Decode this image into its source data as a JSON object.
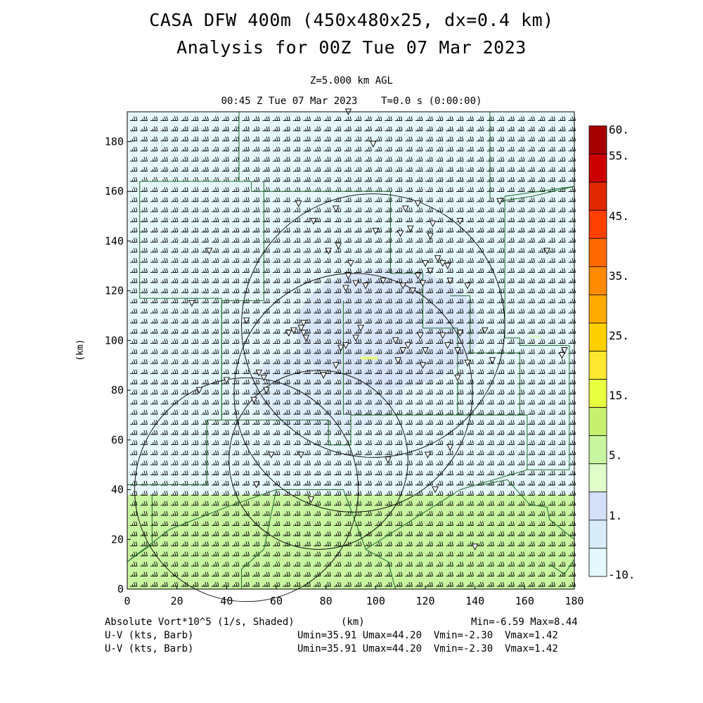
{
  "header": {
    "title_line1": "CASA DFW 400m (450x480x25, dx=0.4 km)",
    "title_line2": "Analysis for 00Z Tue 07 Mar 2023",
    "level_label": "Z=5.000 km AGL",
    "time_label": "00:45 Z Tue 07 Mar 2023    T=0.0 s (0:00:00)"
  },
  "footer": {
    "field_label": "Absolute Vort*10^5 (1/s, Shaded)",
    "x_unit": "(km)",
    "minmax": "Min=-6.59 Max=8.44",
    "wind_label_1": "U-V (kts, Barb)",
    "wind_stats_1": "Umin=35.91 Umax=44.20  Vmin=-2.30  Vmax=1.42",
    "wind_label_2": "U-V (kts, Barb)",
    "wind_stats_2": "Umin=35.91 Umax=44.20  Vmin=-2.30  Vmax=1.42"
  },
  "colors": {
    "band_low": "#e6f8fc",
    "band_mid": "#d4e0f8",
    "band_green": "#c8f5a0",
    "barb": "#000000",
    "county_lines": "#1a6b2a"
  },
  "chart_data": {
    "type": "heatmap",
    "xlabel": "",
    "ylabel": "(km)",
    "xlim": [
      0,
      180
    ],
    "ylim": [
      0,
      192
    ],
    "xticks": [
      0,
      20,
      40,
      60,
      80,
      100,
      120,
      140,
      160,
      180
    ],
    "yticks": [
      0,
      20,
      40,
      60,
      80,
      100,
      120,
      140,
      160,
      180
    ],
    "grid": false,
    "colorbar": {
      "labels": [
        "60.",
        "55.",
        "45.",
        "35.",
        "25.",
        "15.",
        "5.",
        "1.",
        "-10."
      ],
      "colors": [
        "#a80000",
        "#cc0000",
        "#e02800",
        "#ff4000",
        "#ff6a00",
        "#ff8c00",
        "#ffaa00",
        "#ffd000",
        "#ffe830",
        "#e8ff40",
        "#c8f070",
        "#c8f5a0",
        "#e0fcc8",
        "#d4e0f8",
        "#d8ecfa",
        "#e6f8fc"
      ]
    },
    "field_regions": [
      {
        "y_from": 0,
        "y_to": 38,
        "level": "5 to 10"
      },
      {
        "y_from": 38,
        "y_to": 192,
        "level": "-10 to 1"
      }
    ],
    "wind": {
      "u_range": [
        35.91,
        44.2
      ],
      "v_range": [
        -2.3,
        1.42
      ],
      "units": "kts"
    },
    "range_rings": [
      {
        "center": [
          48,
          40
        ],
        "radius": 45
      },
      {
        "center": [
          77,
          52
        ],
        "radius": 36
      },
      {
        "center": [
          91,
          79
        ],
        "radius": 48
      },
      {
        "center": [
          99,
          106
        ],
        "radius": 53
      }
    ],
    "stations": [
      [
        89,
        192
      ],
      [
        99,
        179
      ],
      [
        69,
        155
      ],
      [
        75,
        148
      ],
      [
        84,
        153
      ],
      [
        100,
        144
      ],
      [
        112,
        153
      ],
      [
        117,
        155
      ],
      [
        123,
        147
      ],
      [
        134,
        148
      ],
      [
        150,
        156
      ],
      [
        110,
        143
      ],
      [
        114,
        145
      ],
      [
        122,
        142
      ],
      [
        85,
        138
      ],
      [
        81,
        136
      ],
      [
        90,
        131
      ],
      [
        92,
        123
      ],
      [
        96,
        122
      ],
      [
        88,
        121
      ],
      [
        89,
        126
      ],
      [
        103,
        124
      ],
      [
        111,
        122
      ],
      [
        115,
        120
      ],
      [
        120,
        131
      ],
      [
        122,
        128
      ],
      [
        125,
        133
      ],
      [
        127,
        131
      ],
      [
        129,
        130
      ],
      [
        130,
        124
      ],
      [
        137,
        122
      ],
      [
        169,
        136
      ],
      [
        117,
        126
      ],
      [
        119,
        123
      ],
      [
        33,
        136
      ],
      [
        26,
        115
      ],
      [
        48,
        108
      ],
      [
        65,
        103
      ],
      [
        67,
        104
      ],
      [
        70,
        105
      ],
      [
        71,
        103
      ],
      [
        71,
        107
      ],
      [
        72,
        101
      ],
      [
        92,
        101
      ],
      [
        94,
        105
      ],
      [
        88,
        98
      ],
      [
        86,
        97
      ],
      [
        108,
        100
      ],
      [
        111,
        96
      ],
      [
        113,
        98
      ],
      [
        118,
        102
      ],
      [
        120,
        96
      ],
      [
        127,
        102
      ],
      [
        129,
        98
      ],
      [
        133,
        96
      ],
      [
        144,
        104
      ],
      [
        134,
        103
      ],
      [
        147,
        92
      ],
      [
        175,
        94
      ],
      [
        176,
        96
      ],
      [
        109,
        92
      ],
      [
        119,
        90
      ],
      [
        53,
        87
      ],
      [
        55,
        85
      ],
      [
        56,
        80
      ],
      [
        51,
        76
      ],
      [
        29,
        80
      ],
      [
        40,
        84
      ],
      [
        79,
        86
      ],
      [
        84,
        90
      ],
      [
        133,
        85
      ],
      [
        58,
        54
      ],
      [
        70,
        54
      ],
      [
        105,
        52
      ],
      [
        121,
        54
      ],
      [
        130,
        57
      ],
      [
        137,
        91
      ],
      [
        124,
        40
      ],
      [
        52,
        42
      ],
      [
        74,
        36
      ],
      [
        140,
        17
      ]
    ],
    "county_lines": [
      [
        [
          5,
          164
        ],
        [
          5,
          117
        ],
        [
          38,
          117
        ],
        [
          38,
          68
        ],
        [
          81,
          68
        ],
        [
          81,
          58
        ],
        [
          90,
          58
        ],
        [
          90,
          70
        ],
        [
          133,
          70
        ],
        [
          133,
          83
        ]
      ],
      [
        [
          5,
          164
        ],
        [
          50,
          164
        ],
        [
          50,
          160
        ],
        [
          106,
          160
        ],
        [
          106,
          127
        ],
        [
          119,
          127
        ],
        [
          119,
          105
        ],
        [
          133,
          105
        ],
        [
          133,
          70
        ],
        [
          161,
          70
        ],
        [
          161,
          48
        ],
        [
          178,
          48
        ],
        [
          178,
          98
        ],
        [
          158,
          98
        ],
        [
          158,
          101
        ],
        [
          152,
          101
        ],
        [
          152,
          158
        ],
        [
          180,
          162
        ]
      ],
      [
        [
          45,
          192
        ],
        [
          45,
          164
        ]
      ],
      [
        [
          146,
          192
        ],
        [
          146,
          157
        ]
      ],
      [
        [
          55,
          164
        ],
        [
          55,
          116
        ],
        [
          38,
          116
        ]
      ],
      [
        [
          38,
          116
        ],
        [
          38,
          68
        ],
        [
          32,
          68
        ],
        [
          32,
          42
        ],
        [
          0,
          42
        ]
      ],
      [
        [
          130,
          118
        ],
        [
          138,
          118
        ],
        [
          138,
          95
        ],
        [
          158,
          95
        ],
        [
          158,
          70
        ]
      ],
      [
        [
          87,
          116
        ],
        [
          87,
          70
        ]
      ],
      [
        [
          0,
          11
        ],
        [
          17,
          24
        ],
        [
          40,
          33
        ],
        [
          60,
          40
        ],
        [
          87,
          40
        ],
        [
          96,
          16
        ],
        [
          134,
          40
        ],
        [
          161,
          48
        ]
      ],
      [
        [
          150,
          156
        ],
        [
          163,
          158
        ],
        [
          180,
          162
        ]
      ],
      [
        [
          60,
          40
        ],
        [
          55,
          16
        ],
        [
          46,
          8
        ],
        [
          46,
          0
        ]
      ],
      [
        [
          96,
          16
        ],
        [
          105,
          11
        ],
        [
          108,
          0
        ]
      ],
      [
        [
          143,
          42
        ],
        [
          153,
          44
        ],
        [
          162,
          34
        ],
        [
          169,
          33
        ],
        [
          170,
          28
        ],
        [
          175,
          24
        ],
        [
          180,
          20
        ]
      ],
      [
        [
          170,
          10
        ],
        [
          176,
          6
        ],
        [
          180,
          12
        ]
      ],
      [
        [
          10,
          38
        ],
        [
          10,
          18
        ],
        [
          0,
          11
        ]
      ]
    ]
  }
}
